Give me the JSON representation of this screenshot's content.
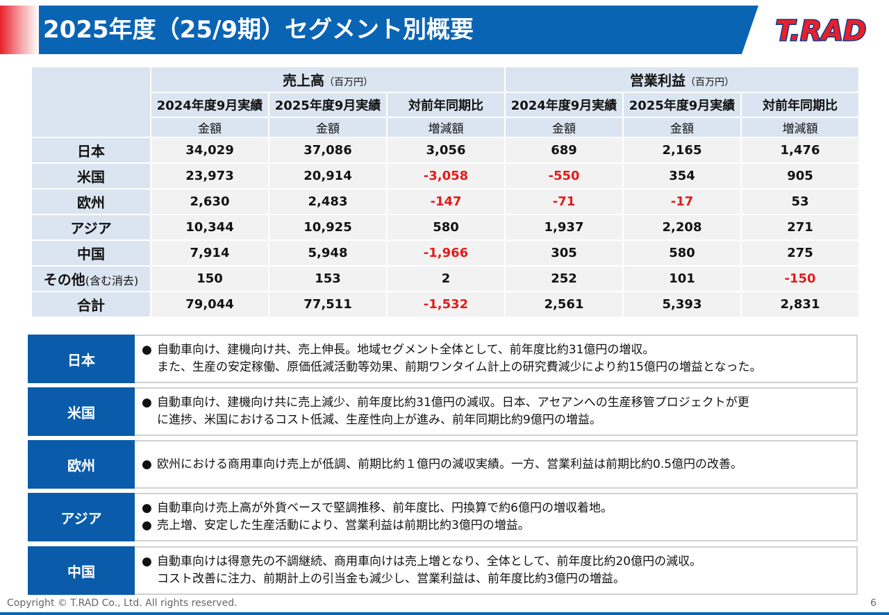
{
  "header": {
    "title": "2025年度（25/9期）セグメント別概要",
    "logo": "T.RAD"
  },
  "table": {
    "groups": [
      {
        "name": "売上高",
        "unit": "（百万円）"
      },
      {
        "name": "営業利益",
        "unit": "（百万円）"
      }
    ],
    "periods": [
      "2024年度9月実績",
      "2025年度9月実績",
      "対前年同期比",
      "2024年度9月実績",
      "2025年度9月実績",
      "対前年同期比"
    ],
    "measures": [
      "金額",
      "金額",
      "増減額",
      "金額",
      "金額",
      "増減額"
    ],
    "rows": [
      {
        "label": "日本",
        "cells": [
          "34,029",
          "37,086",
          "3,056",
          "689",
          "2,165",
          "1,476"
        ]
      },
      {
        "label": "米国",
        "cells": [
          "23,973",
          "20,914",
          "-3,058",
          "-550",
          "354",
          "905"
        ]
      },
      {
        "label": "欧州",
        "cells": [
          "2,630",
          "2,483",
          "-147",
          "-71",
          "-17",
          "53"
        ]
      },
      {
        "label": "アジア",
        "cells": [
          "10,344",
          "10,925",
          "580",
          "1,937",
          "2,208",
          "271"
        ]
      },
      {
        "label": "中国",
        "cells": [
          "7,914",
          "5,948",
          "-1,966",
          "305",
          "580",
          "275"
        ]
      },
      {
        "label": "その他",
        "sublabel": "(含む消去)",
        "cells": [
          "150",
          "153",
          "2",
          "252",
          "101",
          "-150"
        ]
      },
      {
        "label": "合計",
        "cells": [
          "79,044",
          "77,511",
          "-1,532",
          "2,561",
          "5,393",
          "2,831"
        ]
      }
    ]
  },
  "notes": [
    {
      "region": "日本",
      "bullets": [
        [
          "自動車向け、建機向け共、売上伸長。地域セグメント全体として、前年度比約31億円の増収。",
          "また、生産の安定稼働、原価低減活動等効果、前期ワンタイム計上の研究費減少により約15億円の増益となった。"
        ]
      ]
    },
    {
      "region": "米国",
      "bullets": [
        [
          "自動車向け、建機向け共に売上減少、前年度比約31億円の減収。日本、アセアンへの生産移管プロジェクトが更",
          "に進捗、米国におけるコスト低減、生産性向上が進み、前年同期比約9億円の増益。"
        ]
      ]
    },
    {
      "region": "欧州",
      "bullets": [
        [
          "欧州における商用車向け売上が低調、前期比約１億円の減収実績。一方、営業利益は前期比約0.5億円の改善。"
        ]
      ]
    },
    {
      "region": "アジア",
      "bullets": [
        [
          "自動車向け売上高が外貨ベースで堅調推移、前年度比、円換算で約6億円の増収着地。"
        ],
        [
          "売上増、安定した生産活動により、営業利益は前期比約3億円の増益。"
        ]
      ]
    },
    {
      "region": "中国",
      "bullets": [
        [
          "自動車向けは得意先の不調継続、商用車向けは売上増となり、全体として、前年度比約20億円の減収。",
          "コスト改善に注力、前期計上の引当金も減少し、営業利益は、前年度比約3億円の増益。"
        ]
      ]
    }
  ],
  "footer": {
    "copyright": "Copyright © T.RAD Co., Ltd. All rights reserved.",
    "page": "6"
  }
}
